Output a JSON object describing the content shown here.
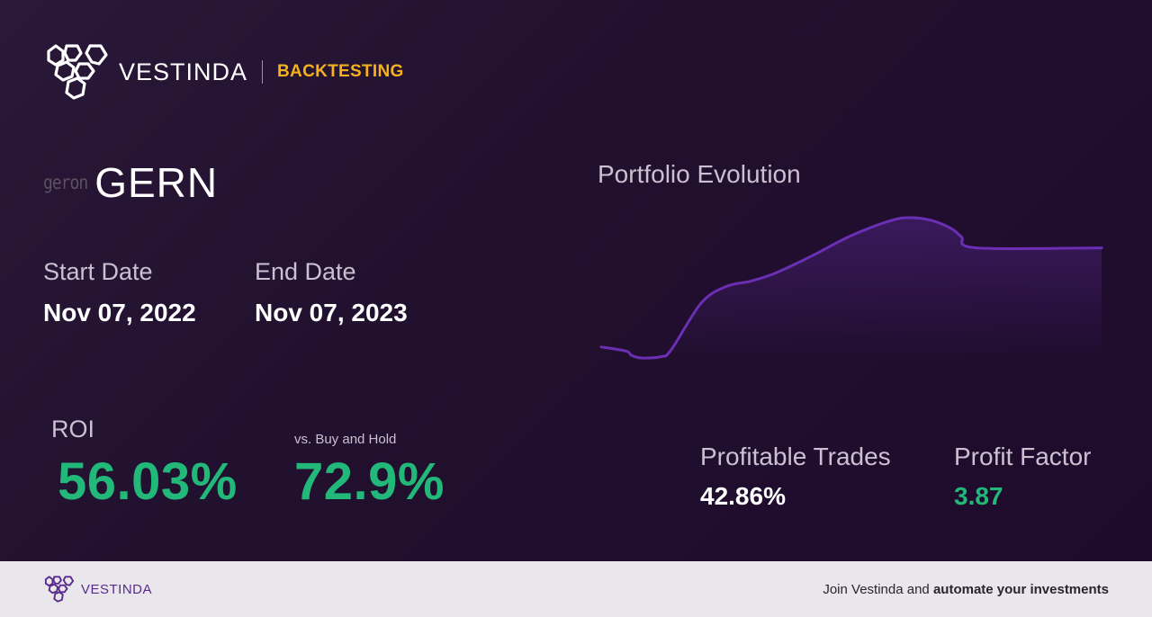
{
  "header": {
    "brand": "VESTINDA",
    "section": "BACKTESTING"
  },
  "ticker": {
    "logo_text": "geron",
    "symbol": "GERN"
  },
  "dates": {
    "start_label": "Start Date",
    "start_value": "Nov 07, 2022",
    "end_label": "End Date",
    "end_value": "Nov 07, 2023"
  },
  "roi": {
    "label": "ROI",
    "value": "56.03%",
    "bh_label": "vs. Buy and Hold",
    "bh_value": "72.9%"
  },
  "chart": {
    "title": "Portfolio Evolution"
  },
  "chart_data": {
    "type": "line",
    "x": [
      0,
      0.05,
      0.06,
      0.08,
      0.12,
      0.14,
      0.2,
      0.25,
      0.3,
      0.35,
      0.42,
      0.5,
      0.58,
      0.62,
      0.66,
      0.7,
      0.72,
      0.75,
      1.0
    ],
    "values": [
      0.08,
      0.05,
      0.02,
      0.0,
      0.01,
      0.06,
      0.4,
      0.52,
      0.56,
      0.62,
      0.74,
      0.89,
      1.0,
      1.02,
      1.0,
      0.94,
      0.88,
      0.8,
      0.8
    ],
    "title": "Portfolio Evolution",
    "xlabel": "",
    "ylabel": "",
    "grid": false,
    "line_color": "#6a2fb5"
  },
  "stats": {
    "trades_label": "Profitable Trades",
    "trades_value": "42.86%",
    "pf_label": "Profit Factor",
    "pf_value": "3.87"
  },
  "footer": {
    "brand": "VESTINDA",
    "cta_prefix": "Join Vestinda and",
    "cta_bold": "automate your investments"
  },
  "colors": {
    "accent_green": "#22b87a",
    "accent_gold": "#f5b21c",
    "brand_purple": "#5a2b8c"
  }
}
